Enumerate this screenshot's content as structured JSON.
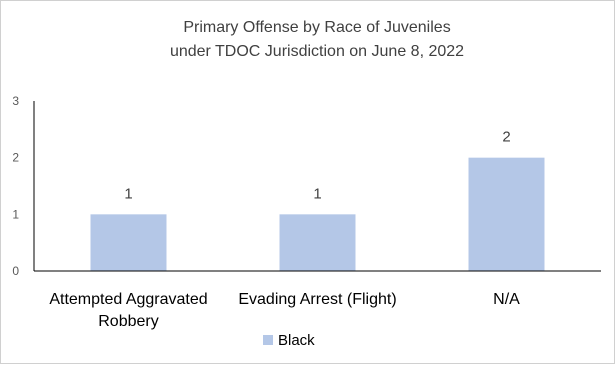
{
  "chart_data": {
    "type": "bar",
    "title_lines": [
      "Primary Offense by Race of Juveniles",
      "under TDOC Jurisdiction on June 8, 2022"
    ],
    "categories": [
      [
        "Attempted Aggravated",
        "Robbery"
      ],
      [
        "Evading Arrest (Flight)"
      ],
      [
        "N/A"
      ]
    ],
    "series": [
      {
        "name": "Black",
        "values": [
          1,
          1,
          2
        ],
        "color": "#b4c7e7"
      }
    ],
    "y_ticks": [
      "0",
      "1",
      "2",
      "3"
    ],
    "ylim": [
      0,
      3
    ],
    "grid": false,
    "legend_position": "bottom"
  }
}
